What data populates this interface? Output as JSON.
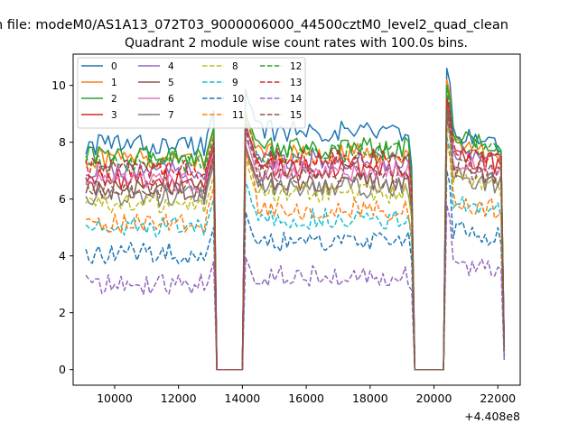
{
  "figure": {
    "suptitle": "n file: modeM0/AS1A13_072T03_9000006000_44500cztM0_level2_quad_clean",
    "title": "Quadrant 2 module wise count rates with 100.0s bins."
  },
  "chart_data": {
    "type": "line",
    "title": "Quadrant 2 module wise count rates with 100.0s bins.",
    "xlabel": "",
    "ylabel": "",
    "x_offset_label": "+4.408e8",
    "xlim": [
      8700,
      22700
    ],
    "ylim": [
      -0.55,
      11.1
    ],
    "xticks": [
      10000,
      12000,
      14000,
      16000,
      18000,
      20000,
      22000
    ],
    "yticks": [
      0,
      2,
      4,
      6,
      8,
      10
    ],
    "xtick_labels": [
      "10000",
      "12000",
      "14000",
      "16000",
      "18000",
      "20000",
      "22000"
    ],
    "ytick_labels": [
      "0",
      "2",
      "4",
      "6",
      "8",
      "10"
    ],
    "grid": false,
    "legend_position": "top-left",
    "legend_columns": 4,
    "segments": [
      {
        "start": 9100,
        "end": 13100
      },
      {
        "start": 14100,
        "end": 19300
      },
      {
        "start": 20400,
        "end": 22200
      }
    ],
    "gaps": [
      {
        "start": 13200,
        "end": 14000
      },
      {
        "start": 19400,
        "end": 20300
      }
    ],
    "series": [
      {
        "name": "0",
        "color": "#1f77b4",
        "style": "solid",
        "levels": [
          7.9,
          8.4,
          7.9
        ],
        "peaks": [
          9.1,
          9.8,
          10.6
        ]
      },
      {
        "name": "1",
        "color": "#ff7f0e",
        "style": "solid",
        "levels": [
          7.4,
          7.6,
          7.5
        ],
        "peaks": [
          8.4,
          8.9,
          10.2
        ]
      },
      {
        "name": "2",
        "color": "#2ca02c",
        "style": "solid",
        "levels": [
          7.5,
          7.8,
          7.8
        ],
        "peaks": [
          8.5,
          9.1,
          10.0
        ]
      },
      {
        "name": "3",
        "color": "#d62728",
        "style": "solid",
        "levels": [
          6.7,
          7.1,
          7.2
        ],
        "peaks": [
          7.8,
          8.6,
          9.6
        ]
      },
      {
        "name": "4",
        "color": "#9467bd",
        "style": "solid",
        "levels": [
          7.0,
          7.4,
          7.3
        ],
        "peaks": [
          8.0,
          8.5,
          9.4
        ]
      },
      {
        "name": "5",
        "color": "#8c564b",
        "style": "solid",
        "levels": [
          6.3,
          6.6,
          6.7
        ],
        "peaks": [
          7.4,
          7.9,
          9.2
        ]
      },
      {
        "name": "6",
        "color": "#e377c2",
        "style": "solid",
        "levels": [
          6.6,
          7.0,
          7.0
        ],
        "peaks": [
          7.6,
          8.2,
          9.0
        ]
      },
      {
        "name": "7",
        "color": "#7f7f7f",
        "style": "solid",
        "levels": [
          6.1,
          6.4,
          6.5
        ],
        "peaks": [
          7.2,
          7.8,
          8.8
        ]
      },
      {
        "name": "8",
        "color": "#bcbd22",
        "style": "dashed",
        "levels": [
          5.8,
          6.2,
          6.4
        ],
        "peaks": [
          6.8,
          7.4,
          8.6
        ]
      },
      {
        "name": "9",
        "color": "#17becf",
        "style": "dashed",
        "levels": [
          5.0,
          5.3,
          5.6
        ],
        "peaks": [
          6.0,
          6.6,
          8.2
        ]
      },
      {
        "name": "10",
        "color": "#1f77b4",
        "style": "dashed",
        "levels": [
          4.1,
          4.5,
          4.6
        ],
        "peaks": [
          5.0,
          5.6,
          7.0
        ]
      },
      {
        "name": "11",
        "color": "#ff7f0e",
        "style": "dashed",
        "levels": [
          5.1,
          5.6,
          5.6
        ],
        "peaks": [
          6.4,
          7.6,
          8.0
        ]
      },
      {
        "name": "12",
        "color": "#2ca02c",
        "style": "dashed",
        "levels": [
          7.3,
          7.6,
          7.7
        ],
        "peaks": [
          8.2,
          8.8,
          9.8
        ]
      },
      {
        "name": "13",
        "color": "#d62728",
        "style": "dashed",
        "levels": [
          7.1,
          7.4,
          7.5
        ],
        "peaks": [
          8.0,
          8.6,
          9.5
        ]
      },
      {
        "name": "14",
        "color": "#9467bd",
        "style": "dashed",
        "levels": [
          3.0,
          3.3,
          3.4
        ],
        "peaks": [
          3.8,
          4.0,
          5.8
        ]
      },
      {
        "name": "15",
        "color": "#8c564b",
        "style": "dashed",
        "levels": [
          6.4,
          6.9,
          6.8
        ],
        "peaks": [
          7.5,
          8.4,
          9.0
        ]
      }
    ]
  }
}
